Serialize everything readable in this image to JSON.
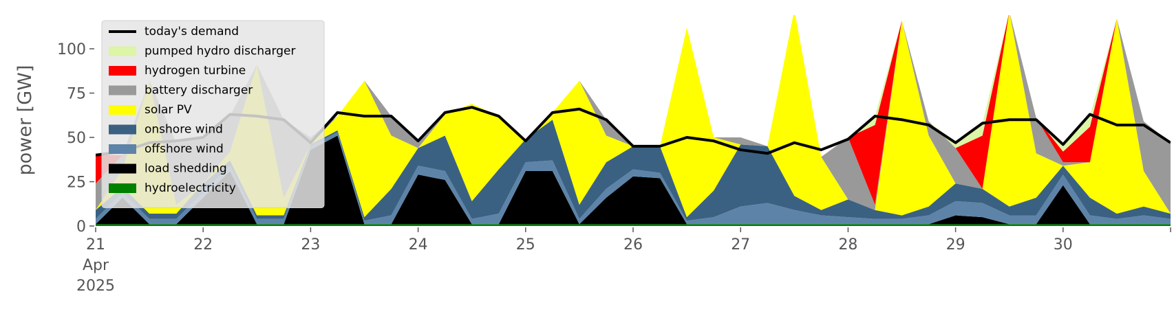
{
  "chart_data": {
    "type": "stacked-area",
    "y_label": "power [GW]",
    "x": [
      21,
      21.25,
      21.5,
      21.75,
      22,
      22.25,
      22.5,
      22.75,
      23,
      23.25,
      23.5,
      23.75,
      24,
      24.25,
      24.5,
      24.75,
      25,
      25.25,
      25.5,
      25.75,
      26,
      26.25,
      26.5,
      26.75,
      27,
      27.25,
      27.5,
      27.75,
      28,
      28.25,
      28.5,
      28.75,
      29,
      29.25,
      29.5,
      29.75,
      30,
      30.25,
      30.5,
      30.75,
      31
    ],
    "xlim": [
      21,
      31
    ],
    "xticks": [
      {
        "value": 21,
        "label": "21\nApr\n2025"
      },
      22,
      23,
      24,
      25,
      26,
      27,
      28,
      29,
      30
    ],
    "ylim": [
      0,
      119
    ],
    "yticks": [
      0,
      25,
      50,
      75,
      100
    ],
    "legend": "upper left",
    "line": {
      "name": "today's demand",
      "color": "#000000",
      "values": [
        40,
        42,
        47,
        48,
        50,
        63,
        62,
        60,
        47,
        64,
        62,
        62,
        48,
        64,
        67,
        62,
        48,
        64,
        66,
        60,
        45,
        45,
        50,
        48,
        43,
        41,
        47,
        43,
        49,
        62,
        60,
        57,
        47,
        58,
        60,
        60,
        46,
        63,
        57,
        57,
        47
      ]
    },
    "series": [
      {
        "name": "pumped hydro discharger",
        "color": "#dcf5a6",
        "values": [
          0,
          0,
          0,
          0,
          0,
          0,
          0,
          0,
          0,
          0,
          0,
          0,
          0,
          0,
          0,
          0,
          0,
          0,
          0,
          0,
          0,
          0,
          0,
          0,
          0,
          0,
          0,
          0,
          0,
          5,
          0,
          0,
          3,
          7,
          0,
          0,
          4,
          6,
          0,
          0,
          0
        ]
      },
      {
        "name": "hydrogen turbine",
        "color": "#ff0000",
        "values": [
          16,
          0,
          0,
          0,
          0,
          0,
          0,
          0,
          0,
          0,
          0,
          0,
          0,
          0,
          0,
          0,
          0,
          0,
          0,
          0,
          0,
          0,
          0,
          0,
          0,
          0,
          0,
          0,
          0,
          45,
          0,
          0,
          0,
          30,
          0,
          0,
          6,
          20,
          0,
          0,
          0
        ]
      },
      {
        "name": "battery discharger",
        "color": "#999999",
        "values": [
          15,
          8,
          0,
          35,
          26,
          20,
          0,
          44,
          4,
          0,
          0,
          11,
          4,
          0,
          0,
          0,
          0,
          0,
          0,
          9,
          0,
          0,
          0,
          0,
          4,
          0,
          0,
          0,
          35,
          3,
          0,
          8,
          20,
          0,
          0,
          20,
          2,
          0,
          0,
          28,
          40
        ]
      },
      {
        "name": "solar PV",
        "color": "#ffff00",
        "values": [
          0,
          10,
          75,
          5,
          0,
          5,
          85,
          10,
          0,
          8,
          77,
          30,
          0,
          12,
          55,
          30,
          0,
          4,
          70,
          15,
          0,
          0,
          107,
          30,
          0,
          0,
          105,
          30,
          0,
          0,
          110,
          40,
          0,
          0,
          110,
          25,
          0,
          20,
          110,
          20,
          0
        ]
      },
      {
        "name": "onshore wind",
        "color": "#3b6182",
        "values": [
          5,
          3,
          3,
          3,
          5,
          3,
          2,
          2,
          1,
          1,
          2,
          15,
          10,
          20,
          10,
          25,
          13,
          23,
          8,
          15,
          13,
          15,
          2,
          15,
          35,
          32,
          8,
          3,
          10,
          5,
          2,
          5,
          10,
          8,
          5,
          10,
          5,
          10,
          3,
          5,
          3
        ]
      },
      {
        "name": "offshore wind",
        "color": "#5d84a8",
        "values": [
          3,
          3,
          3,
          3,
          3,
          3,
          3,
          3,
          2,
          2,
          2,
          5,
          5,
          5,
          3,
          6,
          5,
          6,
          3,
          5,
          4,
          3,
          2,
          4,
          10,
          12,
          8,
          5,
          4,
          3,
          3,
          5,
          8,
          8,
          5,
          5,
          6,
          5,
          3,
          5,
          3
        ]
      },
      {
        "name": "load shedding",
        "color": "#000000",
        "values": [
          0,
          15,
          0,
          0,
          15,
          30,
          0,
          0,
          42,
          50,
          0,
          0,
          28,
          25,
          0,
          0,
          30,
          30,
          0,
          15,
          27,
          26,
          0,
          0,
          0,
          0,
          0,
          0,
          0,
          0,
          0,
          0,
          5,
          4,
          0,
          0,
          22,
          0,
          0,
          0,
          0
        ]
      },
      {
        "name": "hydroelectricity",
        "color": "#008000",
        "values": [
          1,
          1,
          1,
          1,
          1,
          1,
          1,
          1,
          1,
          1,
          1,
          1,
          1,
          1,
          1,
          1,
          1,
          1,
          1,
          1,
          1,
          1,
          1,
          1,
          1,
          1,
          1,
          1,
          1,
          1,
          1,
          1,
          1,
          1,
          1,
          1,
          1,
          1,
          1,
          1,
          1
        ]
      }
    ]
  }
}
